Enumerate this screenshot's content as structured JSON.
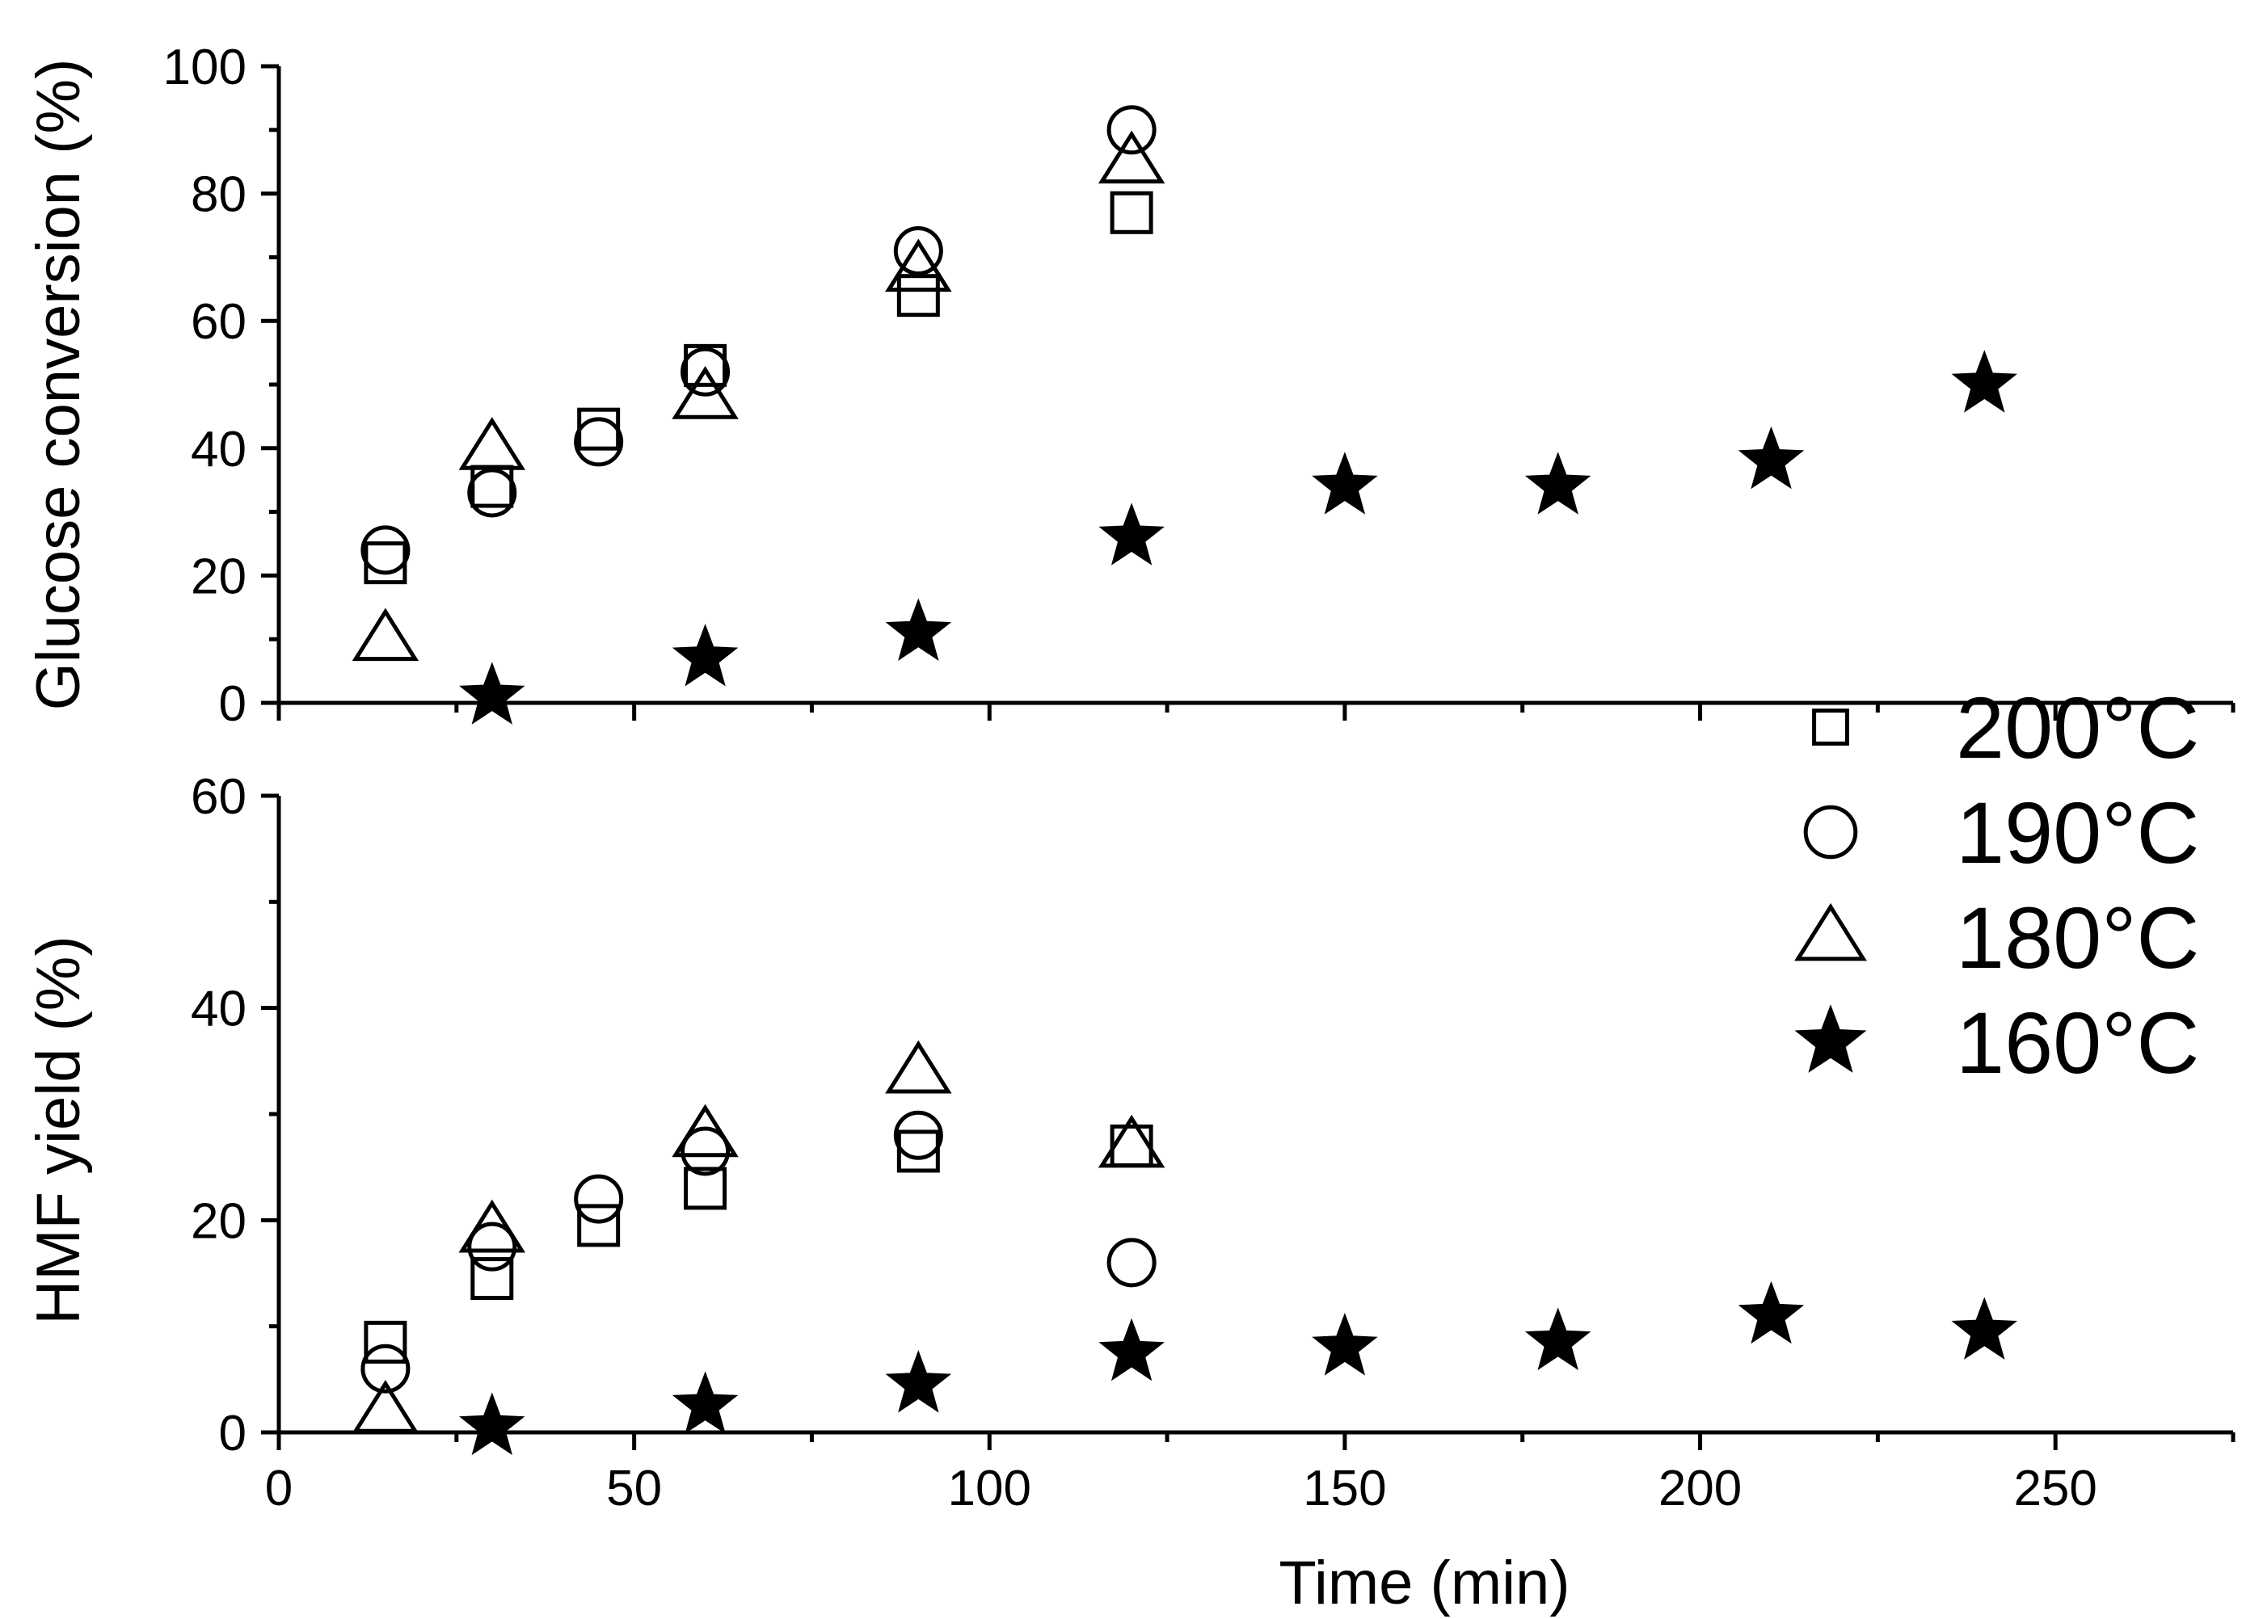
{
  "chart_data": [
    {
      "type": "scatter",
      "id": "conversion",
      "xlabel": "",
      "ylabel": "Glucose conversion (%)",
      "xlim": [
        0,
        275
      ],
      "ylim": [
        0,
        100
      ],
      "yticks": [
        0,
        20,
        40,
        60,
        80,
        100
      ],
      "ytick_labels": [
        "0",
        "20",
        "40",
        "60",
        "80",
        "100"
      ],
      "grid": false,
      "series": [
        {
          "name": "200°C",
          "marker": "square",
          "x": [
            15,
            30,
            45,
            60,
            90,
            120
          ],
          "y": [
            22,
            34,
            43,
            53,
            64,
            77
          ]
        },
        {
          "name": "190°C",
          "marker": "circle",
          "x": [
            15,
            30,
            45,
            60,
            90,
            120
          ],
          "y": [
            24,
            33,
            41,
            52,
            71,
            90
          ]
        },
        {
          "name": "180°C",
          "marker": "triangle",
          "x": [
            15,
            30,
            60,
            90,
            120
          ],
          "y": [
            10,
            40,
            48,
            68,
            85
          ]
        },
        {
          "name": "160°C",
          "marker": "star",
          "x": [
            30,
            60,
            90,
            120,
            150,
            180,
            210,
            240
          ],
          "y": [
            1,
            7,
            11,
            26,
            34,
            34,
            38,
            50
          ]
        }
      ]
    },
    {
      "type": "scatter",
      "id": "yield",
      "xlabel": "Time (min)",
      "ylabel": "HMF yield (%)",
      "xlim": [
        0,
        275
      ],
      "ylim": [
        0,
        60
      ],
      "xticks": [
        0,
        50,
        100,
        150,
        200,
        250
      ],
      "xtick_labels": [
        "0",
        "50",
        "100",
        "150",
        "200",
        "250"
      ],
      "yticks": [
        0,
        20,
        40,
        60
      ],
      "ytick_labels": [
        "0",
        "20",
        "40",
        "60"
      ],
      "grid": false,
      "series": [
        {
          "name": "200°C",
          "marker": "square",
          "x": [
            15,
            30,
            45,
            60,
            90,
            120
          ],
          "y": [
            8.5,
            14.5,
            19.5,
            23,
            26.5,
            27
          ]
        },
        {
          "name": "190°C",
          "marker": "circle",
          "x": [
            15,
            30,
            45,
            60,
            90,
            120
          ],
          "y": [
            6,
            17.5,
            22,
            26.5,
            28,
            16
          ]
        },
        {
          "name": "180°C",
          "marker": "triangle",
          "x": [
            15,
            30,
            60,
            90,
            120
          ],
          "y": [
            2,
            19,
            28,
            34,
            27
          ]
        },
        {
          "name": "160°C",
          "marker": "star",
          "x": [
            30,
            60,
            90,
            120,
            150,
            180,
            210,
            240
          ],
          "y": [
            0.5,
            2.5,
            4.5,
            7.5,
            8,
            8.5,
            11,
            9.5
          ]
        }
      ]
    }
  ],
  "legend": {
    "placement": "right",
    "entries": [
      {
        "label": "200°C",
        "marker": "square"
      },
      {
        "label": "190°C",
        "marker": "circle"
      },
      {
        "label": "180°C",
        "marker": "triangle"
      },
      {
        "label": "160°C",
        "marker": "star"
      }
    ]
  }
}
